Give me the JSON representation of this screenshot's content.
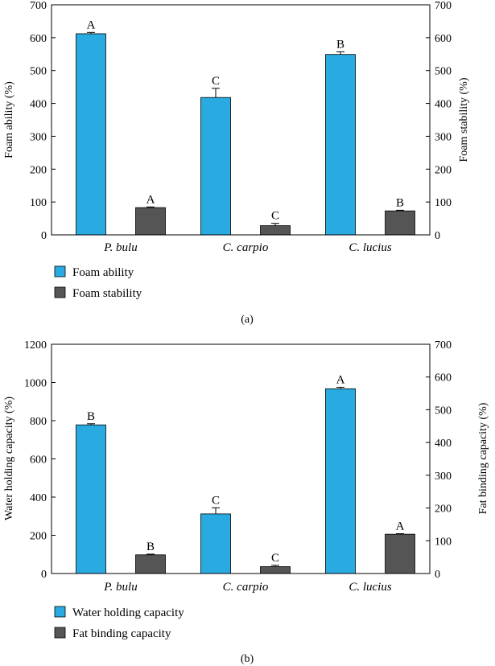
{
  "colors": {
    "primary": "#29abe2",
    "secondary": "#555555",
    "axis": "#000000",
    "error": "#000000"
  },
  "chart_data": [
    {
      "type": "bar",
      "panel_label": "(a)",
      "categories": [
        "P. bulu",
        "C. carpio",
        "C. lucius"
      ],
      "series": [
        {
          "name": "Foam ability",
          "axis": "left",
          "values": [
            612,
            418,
            549
          ],
          "errors": [
            4,
            28,
            8
          ],
          "letters": [
            "A",
            "C",
            "B"
          ]
        },
        {
          "name": "Foam stability",
          "axis": "right",
          "values": [
            83,
            28,
            73
          ],
          "errors": [
            2,
            7,
            2
          ],
          "letters": [
            "A",
            "C",
            "B"
          ]
        }
      ],
      "ylabel_left": "Foam ability (%)",
      "ylabel_right": "Foam stability (%)",
      "ylim_left": [
        0,
        700
      ],
      "ylim_right": [
        0,
        700
      ],
      "yticks_left": [
        "0",
        "100",
        "200",
        "300",
        "400",
        "500",
        "600",
        "700"
      ],
      "yticks_right": [
        "0",
        "100",
        "200",
        "300",
        "400",
        "500",
        "600",
        "700"
      ],
      "legend_position": "bottom-left"
    },
    {
      "type": "bar",
      "panel_label": "(b)",
      "categories": [
        "P. bulu",
        "C. carpio",
        "C. lucius"
      ],
      "series": [
        {
          "name": "Water holding capacity",
          "axis": "left",
          "values": [
            778,
            312,
            967
          ],
          "errors": [
            6,
            32,
            8
          ],
          "letters": [
            "B",
            "C",
            "A"
          ]
        },
        {
          "name": "Fat binding capacity",
          "axis": "right",
          "values": [
            57,
            21,
            120
          ],
          "errors": [
            2,
            4,
            1.5
          ],
          "letters": [
            "B",
            "C",
            "A"
          ]
        }
      ],
      "ylabel_left": "Water holding capacity (%)",
      "ylabel_right": "Fat binding capacity (%)",
      "ylim_left": [
        0,
        1200
      ],
      "ylim_right": [
        0,
        700
      ],
      "yticks_left": [
        "0",
        "200",
        "400",
        "600",
        "800",
        "1000",
        "1200"
      ],
      "yticks_right": [
        "0",
        "100",
        "200",
        "300",
        "400",
        "500",
        "600",
        "700"
      ],
      "legend_position": "bottom-left"
    }
  ]
}
